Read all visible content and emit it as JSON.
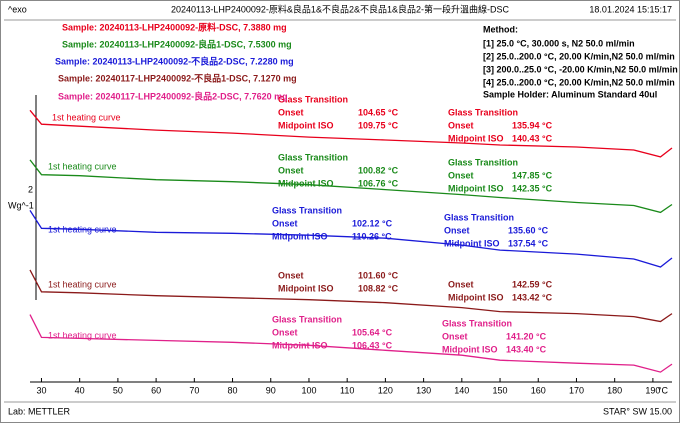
{
  "chart_data": {
    "type": "line",
    "title": "20240113-LHP2400092-原料&良品1&不良品2&不良品1&良品2-第一段升溫曲線-DSC",
    "exo_label": "^exo",
    "timestamp": "18.01.2024 15:15:17",
    "y_label": "Wg^-1",
    "scale_label": "2",
    "footer_left": "Lab: METTLER",
    "footer_right": "STAR° SW 15.00",
    "method": {
      "title": "Method:",
      "lines": [
        "[1] 25.0 °C, 30.000 s,  N2 50.0 ml/min",
        "[2] 25.0..200.0 °C, 20.00 K/min,N2 50.0 ml/min",
        "[3] 200.0..25.0 °C, -20.00 K/min,N2 50.0 ml/min",
        "[4] 25.0..200.0 °C, 20.00 K/min,N2 50.0 ml/min"
      ],
      "holder": "Sample Holder: Aluminum Standard 40ul"
    },
    "x": [
      27,
      30,
      40,
      60,
      80,
      100,
      120,
      140,
      150,
      170,
      185,
      192,
      195
    ],
    "xlim": [
      27,
      195
    ],
    "xticks": [
      30,
      40,
      50,
      60,
      70,
      80,
      90,
      100,
      110,
      120,
      130,
      140,
      150,
      160,
      170,
      180,
      190
    ],
    "x_unit": "°C",
    "ylim": [
      0,
      36
    ],
    "series": [
      {
        "name": "Sample: 20240113-LHP2400092-原料-DSC, 7.3880 mg",
        "color": "#e8001c",
        "curve_label": "1st heating curve",
        "values": [
          27.4,
          26.0,
          25.8,
          25.4,
          25.1,
          24.7,
          24.4,
          24.1,
          23.9,
          23.7,
          23.4,
          22.7,
          23.6
        ],
        "annotations": [
          {
            "title": "Glass Transition",
            "onset_label": "Onset",
            "onset": "104.65 °C",
            "midpoint_label": "Midpoint ISO",
            "midpoint": "109.75 °C"
          },
          {
            "title": "Glass Transition",
            "onset_label": "Onset",
            "onset": "135.94 °C",
            "midpoint_label": "Midpoint ISO",
            "midpoint": "140.43 °C"
          }
        ]
      },
      {
        "name": "Sample: 20240113-LHP2400092-良品1-DSC, 7.5300 mg",
        "color": "#1a8a1a",
        "curve_label": "1st heating curve",
        "values": [
          22.4,
          20.9,
          20.8,
          20.4,
          20.2,
          19.9,
          19.4,
          18.9,
          18.6,
          18.1,
          17.8,
          17.1,
          17.9
        ],
        "annotations": [
          {
            "title": "Glass Transition",
            "onset_label": "Onset",
            "onset": "100.82 °C",
            "midpoint_label": "Midpoint ISO",
            "midpoint": "106.76 °C"
          },
          {
            "title": "Glass Transition",
            "onset_label": "Onset",
            "onset": "147.85 °C",
            "midpoint_label": "Midpoint ISO",
            "midpoint": "142.35 °C"
          }
        ]
      },
      {
        "name": "Sample: 20240113-LHP2400092-不良品2-DSC, 7.2280 mg",
        "color": "#1a1ad8",
        "curve_label": "1st heating curve",
        "values": [
          17.3,
          15.5,
          15.4,
          15.1,
          15.0,
          14.8,
          14.5,
          13.8,
          13.3,
          12.9,
          12.4,
          11.6,
          12.5
        ],
        "annotations": [
          {
            "title": "Glass Transition",
            "onset_label": "Onset",
            "onset": "102.12 °C",
            "midpoint_label": "Midpoint ISO",
            "midpoint": "110.26 °C"
          },
          {
            "title": "Glass Transition",
            "onset_label": "Onset",
            "onset": "135.60 °C",
            "midpoint_label": "Midpoint ISO",
            "midpoint": "137.54 °C"
          }
        ]
      },
      {
        "name": "Sample: 20240117-LHP2400092-不良品1-DSC, 7.1270 mg",
        "color": "#8b1a1a",
        "curve_label": "1st heating curve",
        "values": [
          11.3,
          9.1,
          9.0,
          8.7,
          8.5,
          8.3,
          8.0,
          7.5,
          7.1,
          6.9,
          6.6,
          6.1,
          6.9
        ],
        "annotations": [
          {
            "onset_label": "Onset",
            "onset": "101.60 °C",
            "midpoint_label": "Midpoint ISO",
            "midpoint": "108.82 °C"
          },
          {
            "onset_label": "Onset",
            "onset": "142.59 °C",
            "midpoint_label": "Midpoint ISO",
            "midpoint": "143.42 °C"
          }
        ]
      },
      {
        "name": "Sample: 20240117-LHP2400092-良品2-DSC, 7.7620 mg",
        "color": "#e0208a",
        "curve_label": "1st heating curve",
        "values": [
          6.8,
          4.5,
          4.4,
          4.2,
          4.0,
          3.7,
          3.2,
          2.7,
          2.2,
          1.9,
          1.7,
          1.0,
          1.8
        ],
        "annotations": [
          {
            "title": "Glass Transition",
            "onset_label": "Onset",
            "onset": "105.64 °C",
            "midpoint_label": "Midpoint ISO",
            "midpoint": "106.43 °C"
          },
          {
            "title": "Glass Transition",
            "onset_label": "Onset",
            "onset": "141.20 °C",
            "midpoint_label": "Midpoint ISO",
            "midpoint": "143.40 °C"
          }
        ]
      }
    ]
  }
}
